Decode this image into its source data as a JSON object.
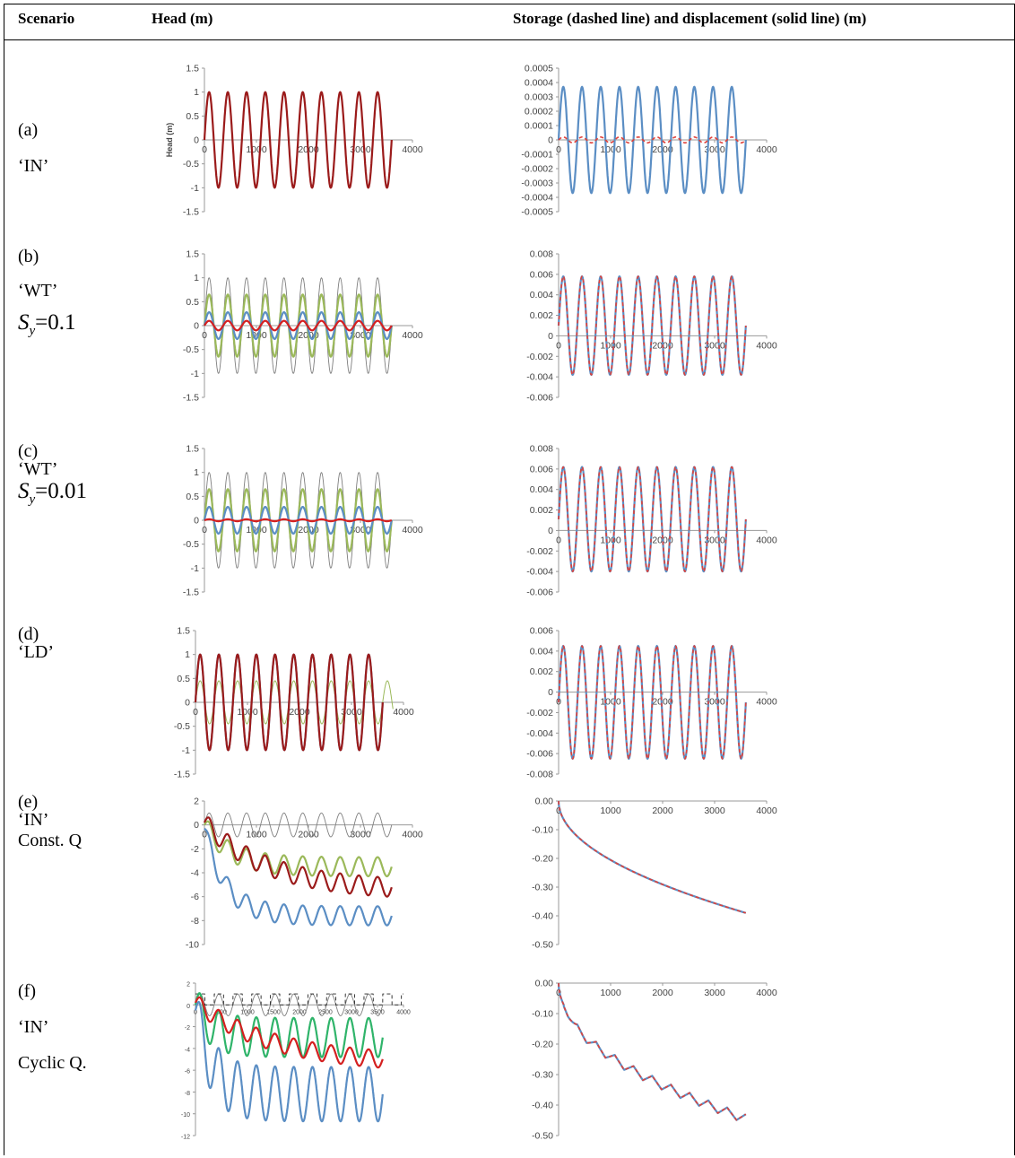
{
  "headers": {
    "scenario": "Scenario",
    "head": "Head (m)",
    "storage": "Storage (dashed line) and displacement (solid line) (m)"
  },
  "rows": [
    {
      "id": "a",
      "label": "(a)",
      "type": "‘IN’",
      "sub": ""
    },
    {
      "id": "b",
      "label": "(b)",
      "type": "‘WT’",
      "sub": "Sy=0.1"
    },
    {
      "id": "c",
      "label": "(c)",
      "type": "‘WT’",
      "sub": "Sy=0.01"
    },
    {
      "id": "d",
      "label": "(d)",
      "type": "‘LD’",
      "sub": ""
    },
    {
      "id": "e",
      "label": "(e)",
      "type": "‘IN’",
      "sub": "Const. Q"
    },
    {
      "id": "f",
      "label": "(f)",
      "type": "‘IN’",
      "sub": "Cyclic Q."
    }
  ],
  "colors": {
    "dark_red": "#9b1b1b",
    "red": "#d42020",
    "blue": "#5b8ec4",
    "green": "#9bb95a",
    "teal_green": "#2fb46a",
    "grey": "#7f7f7f",
    "dashed_red": "#e0413a",
    "axis": "#888888"
  },
  "chart_data": [
    {
      "id": "a-head",
      "type": "line",
      "ylabel": "Head (m)",
      "xlim": [
        0,
        4000
      ],
      "ylim": [
        -1.5,
        1.5
      ],
      "xticks": [
        "0",
        "1000",
        "2000",
        "3000",
        "4000"
      ],
      "yticks": [
        "1.5",
        "1",
        "0.5",
        "0",
        "-0.5",
        "-1",
        "-1.5"
      ],
      "series": [
        {
          "color": "#9b1b1b",
          "amplitude": 1.0,
          "period": 360,
          "x_end": 3600
        }
      ]
    },
    {
      "id": "a-storage",
      "type": "line",
      "xlim": [
        0,
        4000
      ],
      "ylim": [
        -0.0005,
        0.0005
      ],
      "xticks": [
        "0",
        "1000",
        "2000",
        "3000",
        "4000"
      ],
      "yticks": [
        "0.0005",
        "0.0004",
        "0.0003",
        "0.0002",
        "0.0001",
        "0",
        "-0.0001",
        "-0.0002",
        "-0.0003",
        "-0.0004",
        "-0.0005"
      ],
      "series": [
        {
          "color": "#5b8ec4",
          "amplitude": 0.00037,
          "period": 360,
          "x_end": 3600
        },
        {
          "color": "#e0413a",
          "dashed": true,
          "amplitude": 2e-05,
          "period": 360,
          "x_end": 3600
        }
      ]
    },
    {
      "id": "b-head",
      "type": "line",
      "xlim": [
        0,
        4000
      ],
      "ylim": [
        -1.5,
        1.5
      ],
      "xticks": [
        "0",
        "1000",
        "2000",
        "3000",
        "4000"
      ],
      "yticks": [
        "1.5",
        "1",
        "0.5",
        "0",
        "-0.5",
        "-1",
        "-1.5"
      ],
      "series": [
        {
          "color": "#7f7f7f",
          "amplitude": 1.0,
          "period": 360,
          "x_end": 3600,
          "width": 0.9
        },
        {
          "color": "#9bb95a",
          "amplitude": 0.65,
          "period": 360,
          "x_end": 3600
        },
        {
          "color": "#5b8ec4",
          "amplitude": 0.28,
          "period": 360,
          "x_end": 3600
        },
        {
          "color": "#d42020",
          "amplitude": 0.1,
          "period": 360,
          "x_end": 3600
        }
      ]
    },
    {
      "id": "b-storage",
      "type": "line",
      "xlim": [
        0,
        4000
      ],
      "ylim": [
        -0.006,
        0.008
      ],
      "xticks": [
        "0",
        "1000",
        "2000",
        "3000",
        "4000"
      ],
      "yticks": [
        "0.008",
        "0.006",
        "0.004",
        "0.002",
        "0",
        "-0.002",
        "-0.004",
        "-0.006"
      ],
      "series": [
        {
          "color": "#5b8ec4",
          "amplitude": 0.0048,
          "offset": 0.001,
          "period": 360,
          "x_end": 3600
        },
        {
          "color": "#e0413a",
          "dashed": true,
          "amplitude": 0.0048,
          "offset": 0.001,
          "period": 360,
          "x_end": 3600
        }
      ]
    },
    {
      "id": "c-head",
      "type": "line",
      "xlim": [
        0,
        4000
      ],
      "ylim": [
        -1.5,
        1.5
      ],
      "xticks": [
        "0",
        "1000",
        "2000",
        "3000",
        "4000"
      ],
      "yticks": [
        "1.5",
        "1",
        "0.5",
        "0",
        "-0.5",
        "-1",
        "-1.5"
      ],
      "series": [
        {
          "color": "#7f7f7f",
          "amplitude": 1.0,
          "period": 360,
          "x_end": 3600,
          "width": 0.9
        },
        {
          "color": "#9bb95a",
          "amplitude": 0.65,
          "period": 360,
          "x_end": 3600
        },
        {
          "color": "#5b8ec4",
          "amplitude": 0.28,
          "period": 360,
          "x_end": 3600
        },
        {
          "color": "#d42020",
          "amplitude": 0.02,
          "period": 360,
          "x_end": 3600
        }
      ]
    },
    {
      "id": "c-storage",
      "type": "line",
      "xlim": [
        0,
        4000
      ],
      "ylim": [
        -0.006,
        0.008
      ],
      "xticks": [
        "0",
        "1000",
        "2000",
        "3000",
        "4000"
      ],
      "yticks": [
        "0.008",
        "0.006",
        "0.004",
        "0.002",
        "0",
        "-0.002",
        "-0.004",
        "-0.006"
      ],
      "series": [
        {
          "color": "#5b8ec4",
          "amplitude": 0.0051,
          "offset": 0.0011,
          "period": 360,
          "x_end": 3600
        },
        {
          "color": "#e0413a",
          "dashed": true,
          "amplitude": 0.0051,
          "offset": 0.0011,
          "period": 360,
          "x_end": 3600
        }
      ]
    },
    {
      "id": "d-head",
      "type": "line",
      "xlim": [
        0,
        4000
      ],
      "ylim": [
        -1.5,
        1.5
      ],
      "xticks": [
        "0",
        "1000",
        "2000",
        "3000",
        "4000"
      ],
      "yticks": [
        "1.5",
        "1",
        "0.5",
        "0",
        "-0.5",
        "-1",
        "-1.5"
      ],
      "series": [
        {
          "color": "#9bb95a",
          "amplitude": 0.45,
          "period": 360,
          "x_end": 3800,
          "width": 1.0
        },
        {
          "color": "#5b8ec4",
          "amplitude": 1.0,
          "period": 360,
          "x_end": 3600
        },
        {
          "color": "#9b1b1b",
          "amplitude": 1.0,
          "period": 360,
          "x_end": 3600
        }
      ]
    },
    {
      "id": "d-storage",
      "type": "line",
      "xlim": [
        0,
        4000
      ],
      "ylim": [
        -0.008,
        0.006
      ],
      "xticks": [
        "0",
        "1000",
        "2000",
        "3000",
        "4000"
      ],
      "yticks": [
        "0.006",
        "0.004",
        "0.002",
        "0",
        "-0.002",
        "-0.004",
        "-0.006",
        "-0.008"
      ],
      "series": [
        {
          "color": "#5b8ec4",
          "amplitude": 0.0055,
          "offset": -0.001,
          "period": 360,
          "x_end": 3600
        },
        {
          "color": "#e0413a",
          "dashed": true,
          "amplitude": 0.0055,
          "offset": -0.001,
          "period": 360,
          "x_end": 3600
        }
      ]
    },
    {
      "id": "e-head",
      "type": "line",
      "xlim": [
        0,
        4000
      ],
      "ylim": [
        -10,
        2
      ],
      "xticks": [
        "0",
        "1000",
        "2000",
        "3000",
        "4000"
      ],
      "yticks": [
        "2",
        "0",
        "-2",
        "-4",
        "-6",
        "-8",
        "-10"
      ],
      "series": [
        {
          "color": "#7f7f7f",
          "amplitude": 1.0,
          "period": 360,
          "x_end": 3600,
          "width": 0.9
        },
        {
          "color": "#9bb95a",
          "amplitude": 0.8,
          "period": 360,
          "x_end": 3600,
          "trend": [
            0,
            -3.5
          ],
          "trend_scale": 500
        },
        {
          "color": "#9b1b1b",
          "amplitude": 0.8,
          "period": 360,
          "x_end": 3600,
          "trend": [
            0.2,
            -5.5
          ],
          "trend_scale": 1200
        },
        {
          "color": "#5b8ec4",
          "amplitude": 0.8,
          "period": 360,
          "x_end": 3600,
          "trend": [
            -0.3,
            -7.6
          ],
          "trend_scale": 400
        }
      ]
    },
    {
      "id": "e-storage",
      "type": "line",
      "xlim": [
        0,
        4000
      ],
      "ylim": [
        -0.5,
        0.0
      ],
      "xticks": [
        "0",
        "1000",
        "2000",
        "3000",
        "4000"
      ],
      "yticks": [
        "0.00",
        "-0.10",
        "-0.20",
        "-0.30",
        "-0.40",
        "-0.50"
      ],
      "series": [
        {
          "color": "#5b8ec4",
          "curve": "sqrt",
          "y_end": -0.39,
          "x_end": 3600
        },
        {
          "color": "#e0413a",
          "dashed": true,
          "curve": "sqrt",
          "y_end": -0.39,
          "x_end": 3600
        }
      ]
    },
    {
      "id": "f-head",
      "type": "line",
      "xlim": [
        0,
        4000
      ],
      "ylim": [
        -12,
        2
      ],
      "xticks": [
        "0",
        "500",
        "1000",
        "1500",
        "2000",
        "2500",
        "3000",
        "3500",
        "4000"
      ],
      "yticks": [
        "2",
        "0",
        "-2",
        "-4",
        "-6",
        "-8",
        "-10",
        "-12"
      ],
      "series": [
        {
          "color": "#7f7f7f",
          "amplitude": 1.0,
          "period": 360,
          "x_end": 3600,
          "width": 0.9
        },
        {
          "color": "#222222",
          "dashed": true,
          "square": true,
          "amplitude": 1.0,
          "period": 360,
          "x_end": 4000,
          "width": 0.9
        },
        {
          "color": "#2fb46a",
          "amplitude": 1.8,
          "period": 360,
          "x_end": 3600,
          "trend": [
            0,
            -3.0
          ],
          "trend_scale": 300
        },
        {
          "color": "#d42020",
          "amplitude": 0.8,
          "period": 360,
          "x_end": 3600,
          "trend": [
            0.2,
            -5.5
          ],
          "trend_scale": 1500
        },
        {
          "color": "#5b8ec4",
          "amplitude": 2.5,
          "period": 360,
          "x_end": 3600,
          "trend": [
            -0.5,
            -8.2
          ],
          "trend_scale": 300
        }
      ]
    },
    {
      "id": "f-storage",
      "type": "line",
      "xlim": [
        0,
        4000
      ],
      "ylim": [
        -0.5,
        0.0
      ],
      "xticks": [
        "0",
        "1000",
        "2000",
        "3000",
        "4000"
      ],
      "yticks": [
        "0.00",
        "-0.10",
        "-0.20",
        "-0.30",
        "-0.40",
        "-0.50"
      ],
      "series": [
        {
          "color": "#5b8ec4",
          "curve": "sqrt-saw",
          "y_end": -0.43,
          "x_end": 3600,
          "period": 360
        },
        {
          "color": "#e0413a",
          "dashed": true,
          "curve": "sqrt-saw",
          "y_end": -0.43,
          "x_end": 3600,
          "period": 360
        }
      ]
    }
  ]
}
